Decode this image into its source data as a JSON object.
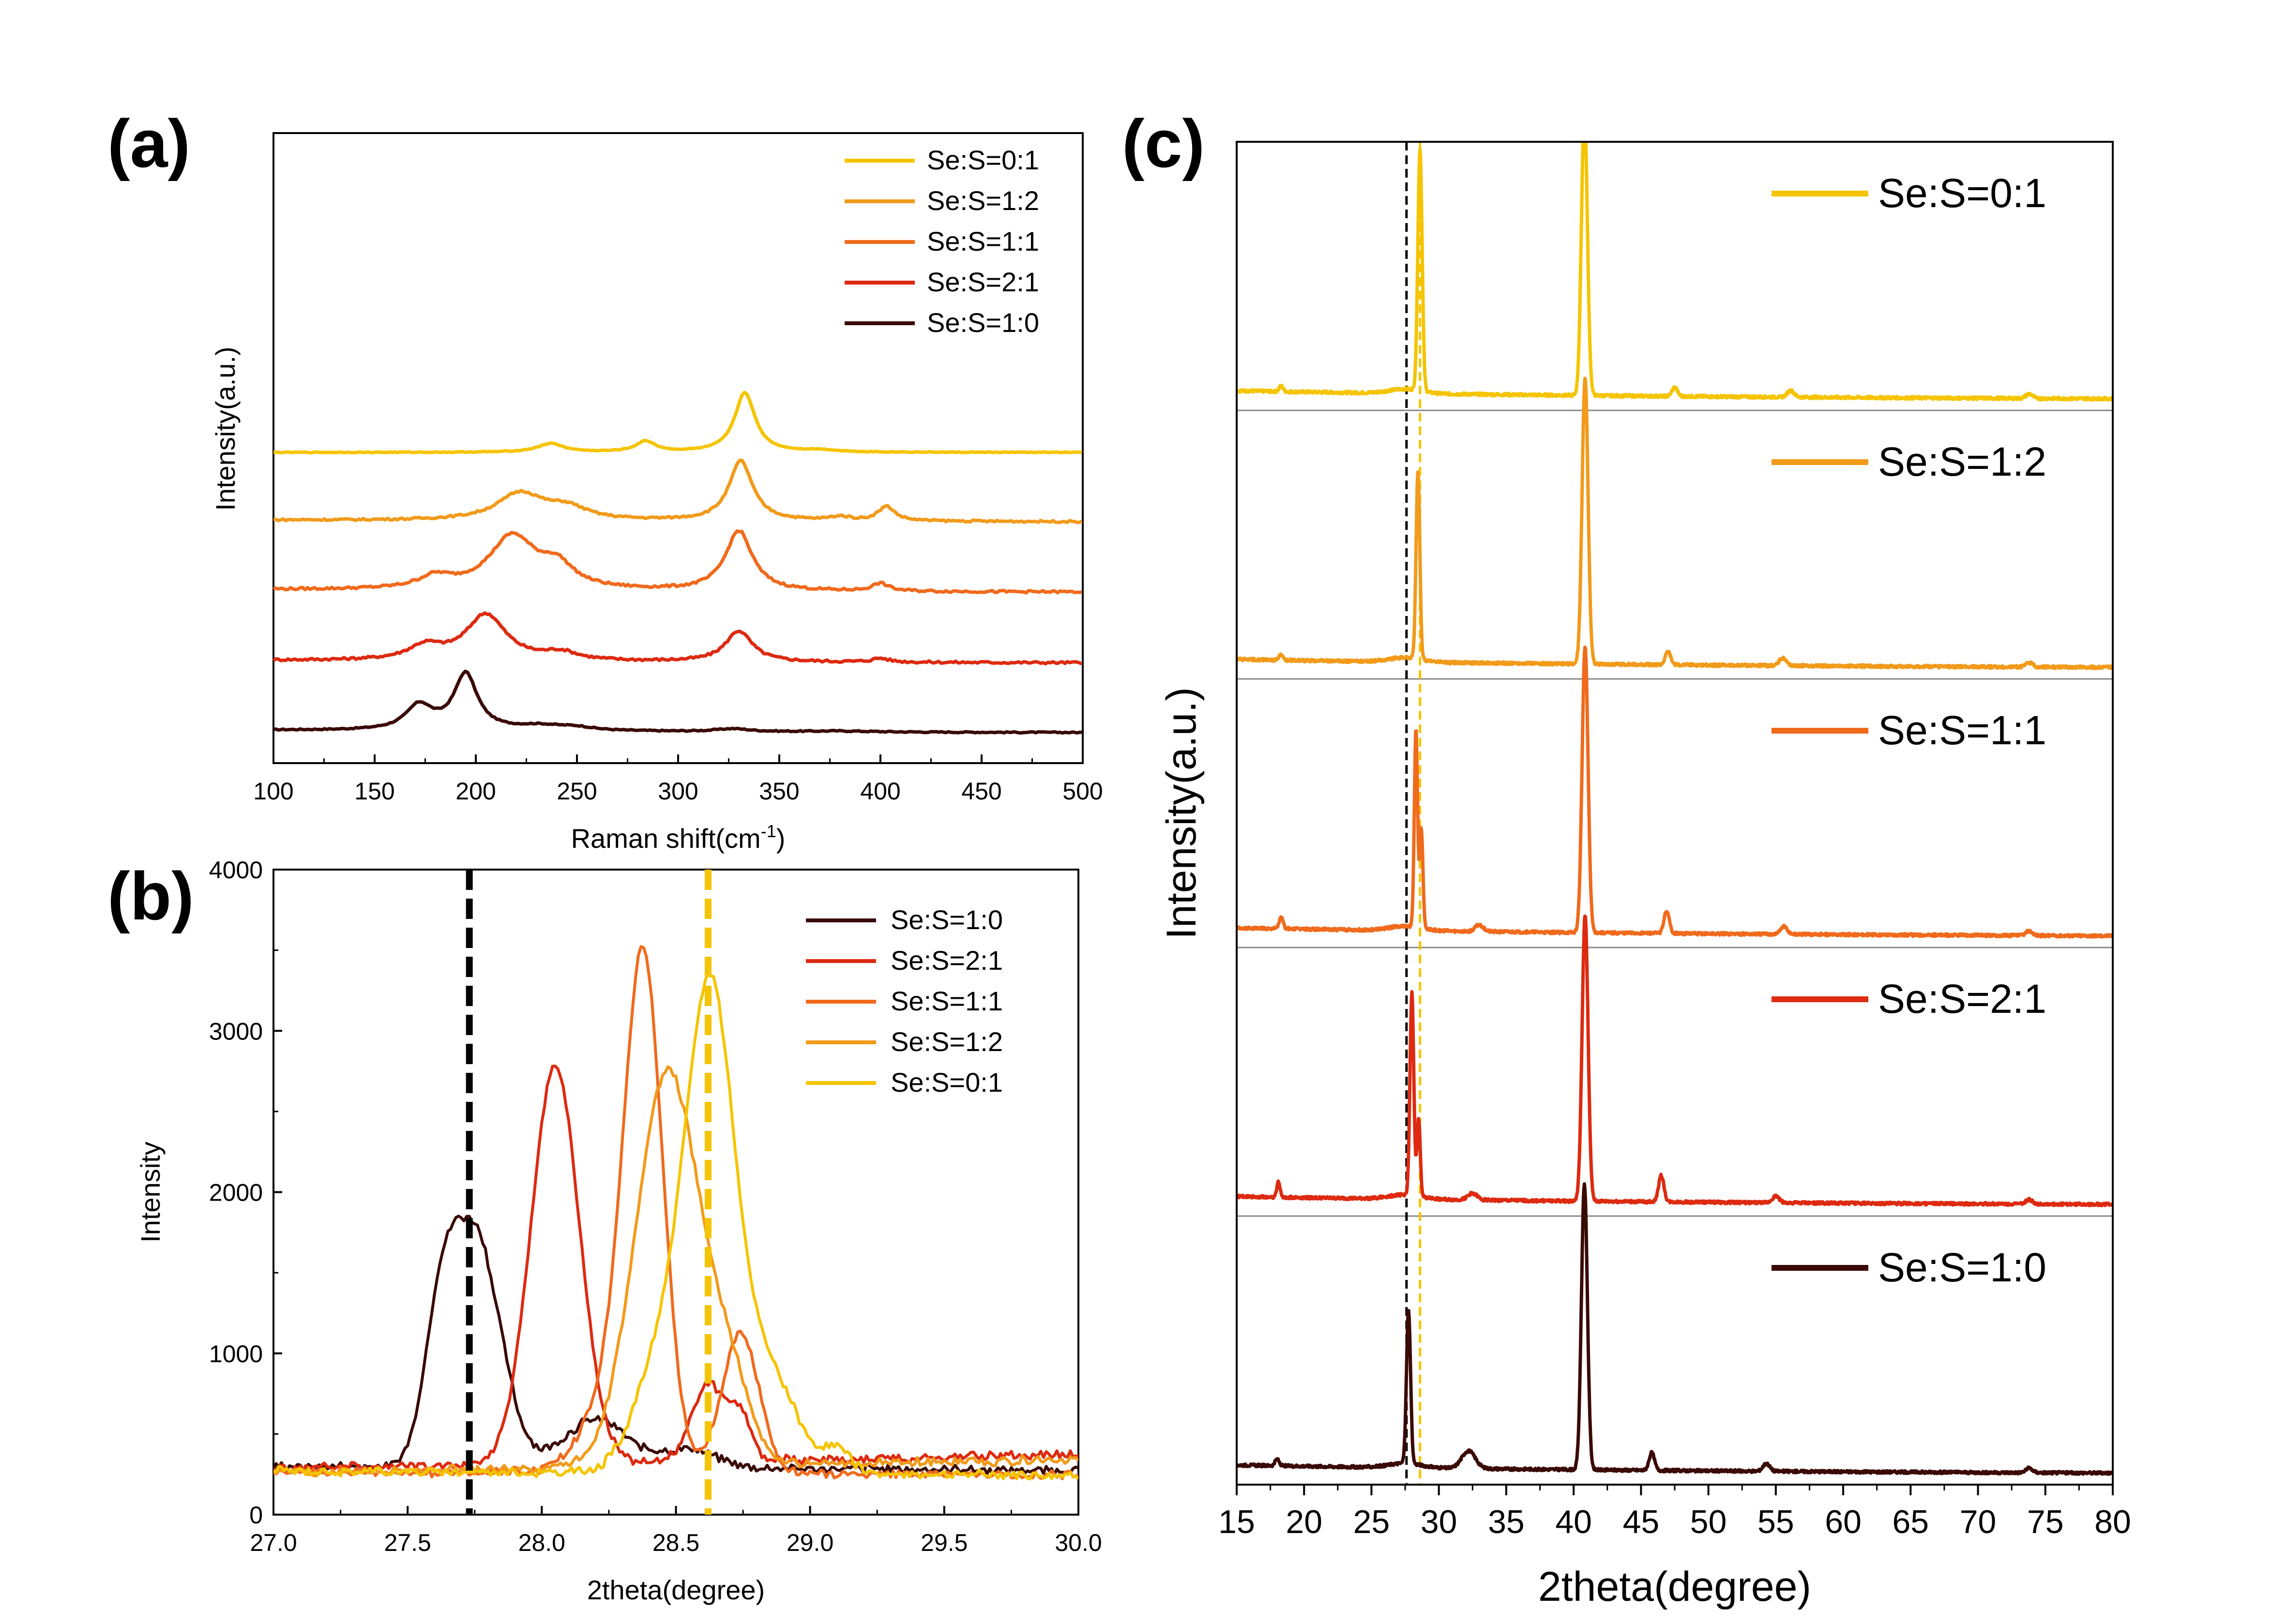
{
  "figure": {
    "panel_labels": [
      "(a)",
      "(b)",
      "(c)"
    ]
  },
  "colors": {
    "Se:S=0:1": "#F5C400",
    "Se:S=1:2": "#F29A1A",
    "Se:S=1:1": "#F06A1C",
    "Se:S=2:1": "#DD2A10",
    "Se:S=1:0": "#3A0A06",
    "ref_black": "#000000",
    "ref_yellow": "#F5C400"
  },
  "chart_data": [
    {
      "id": "a",
      "type": "line",
      "title": "",
      "xlabel": "Raman shift(cm",
      "xlabel_sup": "-1",
      "xlabel_end": ")",
      "ylabel": "Intensity(a.u.)",
      "xlim": [
        100,
        500
      ],
      "xticks": [
        100,
        150,
        200,
        250,
        300,
        350,
        400,
        450,
        500
      ],
      "y_ticks_shown": false,
      "legend_position": "top-right",
      "legend": [
        "Se:S=0:1",
        "Se:S=1:2",
        "Se:S=1:1",
        "Se:S=2:1",
        "Se:S=1:0"
      ],
      "series": [
        {
          "name": "Se:S=1:0",
          "offset": 0.0,
          "peaks": [
            [
              172,
              0.25,
              8
            ],
            [
              195,
              0.58,
              7
            ],
            [
              232,
              0.05,
              15
            ],
            [
              250,
              0.03,
              10
            ],
            [
              327,
              0.03,
              10
            ],
            [
              380,
              0.01,
              20
            ]
          ],
          "baseline": 0.03,
          "noise": 0.003
        },
        {
          "name": "Se:S=2:1",
          "offset": 0.72,
          "peaks": [
            [
              175,
              0.14,
              10
            ],
            [
              205,
              0.48,
              12
            ],
            [
              242,
              0.08,
              10
            ],
            [
              330,
              0.32,
              8
            ],
            [
              400,
              0.04,
              5
            ]
          ],
          "baseline": 0.03,
          "noise": 0.006
        },
        {
          "name": "Se:S=1:1",
          "offset": 1.45,
          "peaks": [
            [
              180,
              0.12,
              10
            ],
            [
              218,
              0.55,
              14
            ],
            [
              240,
              0.22,
              10
            ],
            [
              330,
              0.62,
              8
            ],
            [
              400,
              0.08,
              5
            ]
          ],
          "baseline": 0.03,
          "noise": 0.006
        },
        {
          "name": "Se:S=1:2",
          "offset": 2.18,
          "peaks": [
            [
              222,
              0.28,
              14
            ],
            [
              245,
              0.12,
              12
            ],
            [
              331,
              0.62,
              7
            ],
            [
              380,
              0.04,
              6
            ],
            [
              403,
              0.15,
              5
            ]
          ],
          "baseline": 0.02,
          "noise": 0.005
        },
        {
          "name": "Se:S=0:1",
          "offset": 2.9,
          "peaks": [
            [
              237,
              0.09,
              8
            ],
            [
              284,
              0.11,
              6
            ],
            [
              333,
              0.62,
              6
            ],
            [
              370,
              0.02,
              10
            ]
          ],
          "baseline": 0.0,
          "noise": 0.002
        }
      ]
    },
    {
      "id": "b",
      "type": "line",
      "title": "",
      "xlabel": "2theta(degree)",
      "ylabel": "Intensity",
      "xlim": [
        27.0,
        30.0
      ],
      "ylim": [
        0,
        4000
      ],
      "xticks": [
        27.0,
        27.5,
        28.0,
        28.5,
        29.0,
        29.5,
        30.0
      ],
      "xtick_labels": [
        "27.0",
        "27.5",
        "28.0",
        "28.5",
        "29.0",
        "29.5",
        "30.0"
      ],
      "yticks": [
        0,
        1000,
        2000,
        3000,
        4000
      ],
      "legend_position": "top-right",
      "legend": [
        "Se:S=1:0",
        "Se:S=2:1",
        "Se:S=1:1",
        "Se:S=1:2",
        "Se:S=0:1"
      ],
      "reference_lines": [
        {
          "x": 27.73,
          "color": "#000000"
        },
        {
          "x": 28.62,
          "color": "#F5C400"
        }
      ],
      "series": [
        {
          "name": "Se:S=1:0",
          "baseline": 300,
          "peaks": [
            [
              27.75,
              1450,
              0.095
            ],
            [
              27.62,
              700,
              0.06
            ],
            [
              28.2,
              300,
              0.12
            ],
            [
              28.55,
              120,
              0.1
            ]
          ]
        },
        {
          "name": "Se:S=2:1",
          "baseline": 290,
          "peaks": [
            [
              28.05,
              2460,
              0.09
            ],
            [
              28.62,
              480,
              0.06
            ],
            [
              28.74,
              280,
              0.04
            ]
          ]
        },
        {
          "name": "Se:S=1:1",
          "baseline": 270,
          "peaks": [
            [
              28.38,
              2780,
              0.07
            ],
            [
              28.3,
              600,
              0.12
            ],
            [
              28.74,
              860,
              0.07
            ]
          ]
        },
        {
          "name": "Se:S=1:2",
          "baseline": 260,
          "peaks": [
            [
              28.47,
              2450,
              0.12
            ],
            [
              28.7,
              450,
              0.08
            ]
          ]
        },
        {
          "name": "Se:S=0:1",
          "baseline": 270,
          "peaks": [
            [
              28.63,
              2900,
              0.09
            ],
            [
              28.45,
              700,
              0.1
            ],
            [
              28.85,
              600,
              0.1
            ],
            [
              29.1,
              150,
              0.05
            ]
          ]
        }
      ]
    },
    {
      "id": "c",
      "type": "line",
      "title": "",
      "xlabel": "2theta(degree)",
      "ylabel": "Intensity(a.u.)",
      "xlim": [
        15,
        80
      ],
      "xticks": [
        15,
        20,
        25,
        30,
        35,
        40,
        45,
        50,
        55,
        60,
        65,
        70,
        75,
        80
      ],
      "y_ticks_shown": false,
      "legend_position": "top-right of each stacked sub-panel",
      "reference_lines": [
        {
          "x": 27.6,
          "color": "#000000"
        },
        {
          "x": 28.6,
          "color": "#F5C400"
        }
      ],
      "series": [
        {
          "name": "Se:S=0:1",
          "peaks": [
            [
              28.6,
              1.1,
              0.16
            ],
            [
              40.8,
              1.3,
              0.22
            ],
            [
              18.3,
              0.025,
              0.15
            ],
            [
              47.5,
              0.04,
              0.2
            ],
            [
              56.1,
              0.03,
              0.25
            ],
            [
              73.8,
              0.02,
              0.25
            ]
          ]
        },
        {
          "name": "Se:S=1:2",
          "peaks": [
            [
              28.45,
              0.85,
              0.14
            ],
            [
              40.85,
              1.3,
              0.22
            ],
            [
              18.3,
              0.025,
              0.15
            ],
            [
              47.0,
              0.06,
              0.2
            ],
            [
              55.5,
              0.035,
              0.25
            ],
            [
              73.8,
              0.02,
              0.25
            ]
          ]
        },
        {
          "name": "Se:S=1:1",
          "peaks": [
            [
              28.3,
              0.9,
              0.12
            ],
            [
              28.7,
              0.45,
              0.12
            ],
            [
              40.85,
              1.3,
              0.22
            ],
            [
              18.3,
              0.05,
              0.15
            ],
            [
              33.0,
              0.03,
              0.3
            ],
            [
              46.9,
              0.1,
              0.2
            ],
            [
              55.6,
              0.035,
              0.25
            ],
            [
              73.8,
              0.02,
              0.25
            ]
          ]
        },
        {
          "name": "Se:S=2:1",
          "peaks": [
            [
              28.0,
              0.92,
              0.14
            ],
            [
              28.5,
              0.35,
              0.12
            ],
            [
              40.85,
              1.3,
              0.22
            ],
            [
              18.1,
              0.07,
              0.12
            ],
            [
              32.5,
              0.03,
              0.35
            ],
            [
              46.5,
              0.12,
              0.2
            ],
            [
              55.0,
              0.03,
              0.25
            ],
            [
              73.8,
              0.02,
              0.25
            ]
          ]
        },
        {
          "name": "Se:S=1:0",
          "peaks": [
            [
              27.75,
              0.7,
              0.15
            ],
            [
              40.8,
              1.3,
              0.22
            ],
            [
              18.0,
              0.03,
              0.15
            ],
            [
              32.2,
              0.08,
              0.5
            ],
            [
              45.8,
              0.08,
              0.2
            ],
            [
              54.3,
              0.035,
              0.25
            ],
            [
              73.8,
              0.02,
              0.25
            ]
          ]
        }
      ]
    }
  ]
}
